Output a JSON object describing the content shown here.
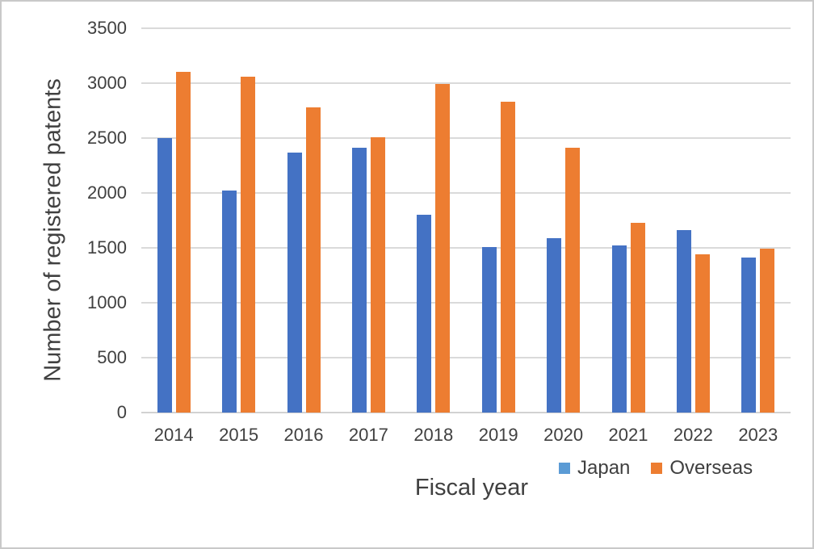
{
  "chart_data": {
    "type": "bar",
    "title": "",
    "xlabel": "Fiscal year",
    "ylabel": "Number of registered patents",
    "categories": [
      "2014",
      "2015",
      "2016",
      "2017",
      "2018",
      "2019",
      "2020",
      "2021",
      "2022",
      "2023"
    ],
    "series": [
      {
        "name": "Japan",
        "color": "#4472C4",
        "legend_color": "#5B9BD5",
        "values": [
          2500,
          2020,
          2370,
          2410,
          1800,
          1510,
          1590,
          1520,
          1660,
          1410
        ]
      },
      {
        "name": "Overseas",
        "color": "#ED7D31",
        "legend_color": "#ED7D31",
        "values": [
          3100,
          3060,
          2780,
          2510,
          2990,
          2830,
          2410,
          1730,
          1440,
          1490
        ]
      }
    ],
    "y_ticks": [
      0,
      500,
      1000,
      1500,
      2000,
      2500,
      3000,
      3500
    ],
    "ylim": [
      0,
      3500
    ],
    "grid": true,
    "legend_position": "bottom-right"
  }
}
